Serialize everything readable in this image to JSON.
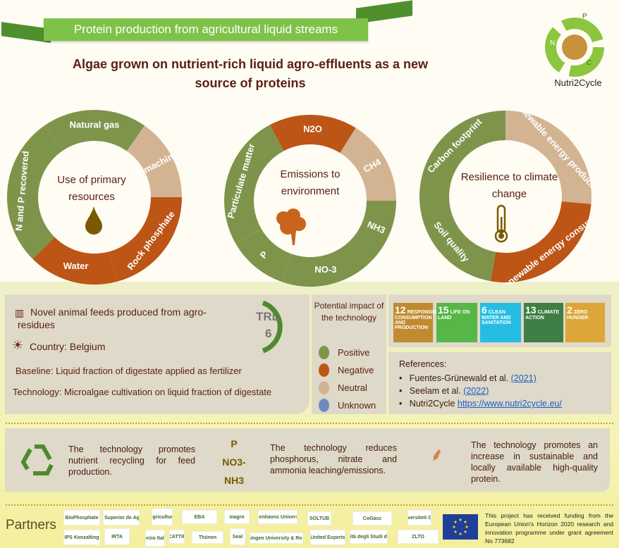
{
  "header": {
    "banner": "Protein production from agricultural liquid streams",
    "subtitle": "Algae grown on nutrient-rich liquid agro-effluents as a new source of proteins",
    "logo_text": "Nutri2Cycle",
    "logo_letters": [
      "N",
      "P",
      "C"
    ]
  },
  "colors": {
    "positive": "#7f944b",
    "negative": "#bc5516",
    "neutral": "#d3b492",
    "unknown": "#6b8dbd"
  },
  "donuts": [
    {
      "center": "Use of primary resources",
      "icon": "oil-drop-icon",
      "segments": [
        {
          "label": "Natural gas",
          "impact": "positive"
        },
        {
          "label": "Oil machinery",
          "impact": "neutral"
        },
        {
          "label": "Rock phosphate",
          "impact": "negative"
        },
        {
          "label": "Water",
          "impact": "negative"
        },
        {
          "label": "N and P recovered",
          "impact": "positive"
        }
      ]
    },
    {
      "center": "Emissions to environment",
      "icon": "smoke-cloud-icon",
      "segments": [
        {
          "label": "N2O",
          "impact": "negative"
        },
        {
          "label": "CH4",
          "impact": "neutral"
        },
        {
          "label": "NH3",
          "impact": "positive"
        },
        {
          "label": "NO-3",
          "impact": "positive"
        },
        {
          "label": "P",
          "impact": "positive"
        },
        {
          "label": "Particulate matter",
          "impact": "positive"
        }
      ]
    },
    {
      "center": "Resilience to climate change",
      "icon": "thermometer-icon",
      "segments": [
        {
          "label": "Renewable energy production",
          "impact": "neutral"
        },
        {
          "label": "Non-renewable energy consumption",
          "impact": "negative"
        },
        {
          "label": "Soil quality",
          "impact": "positive"
        },
        {
          "label": "Carbon footprint",
          "impact": "positive"
        }
      ]
    }
  ],
  "info": {
    "product": "Novel animal feeds produced from agro-",
    "product2": "residues",
    "country": "Country: Belgium",
    "baseline": "Baseline: Liquid fraction of digestate applied as fertilizer",
    "technology": "Technology: Microalgae cultivation on liquid fraction of digestate",
    "trl_label": "TRL",
    "trl_value": "6",
    "trl_max": "9"
  },
  "legend": {
    "title": "Potential impact of the technology",
    "items": [
      {
        "label": "Positive",
        "key": "positive"
      },
      {
        "label": "Negative",
        "key": "negative"
      },
      {
        "label": "Neutral",
        "key": "neutral"
      },
      {
        "label": "Unknown",
        "key": "unknown"
      }
    ]
  },
  "sdgs": [
    {
      "num": "12",
      "text": "RESPONSIBLE CONSUMPTION AND PRODUCTION",
      "color": "#bf8b2e"
    },
    {
      "num": "15",
      "text": "LIFE ON LAND",
      "color": "#56b747"
    },
    {
      "num": "6",
      "text": "CLEAN WATER AND SANITATION",
      "color": "#26bde2"
    },
    {
      "num": "13",
      "text": "CLIMATE ACTION",
      "color": "#3f7e44"
    },
    {
      "num": "2",
      "text": "ZERO HUNGER",
      "color": "#dda63a"
    }
  ],
  "references": {
    "title": "References:",
    "items": [
      {
        "text": "Fuentes-Grünewald et al. ",
        "link": "(2021)"
      },
      {
        "text": "Seelam et al. ",
        "link": "(2022)"
      },
      {
        "text": "Nutri2Cycle ",
        "link": "https://www.nutri2cycle.eu/"
      }
    ]
  },
  "benefits": {
    "b1": "The technology promotes nutrient recycling for feed production.",
    "chem": [
      "P",
      "NO3-",
      "NH3"
    ],
    "b2": "The technology reduces phosphorus, nitrate and ammonia leaching/emissions.",
    "b3": "The technology promotes an increase in sustainable and locally available high-quality protein."
  },
  "partners": {
    "label": "Partners",
    "logos": [
      "BioPhosphate",
      "Instituto Superior de Agronomia",
      "Agricultura",
      "EBA",
      "inagro",
      "Københavns Universitet",
      "SOLTUB",
      "CoGasc",
      "Universiteit Gent",
      "IPS Konzalting",
      "IRTA",
      "Consorzio Italbiotec",
      "CATTIF",
      "Thünen",
      "Seal",
      "Wageningen University & Research",
      "United Experts",
      "Università degli Studi di Milano",
      "ZLTO"
    ],
    "funding": "This project has received funding from the European Union's Horizon 2020 research and innovation programme under grant agreement No 773682"
  }
}
